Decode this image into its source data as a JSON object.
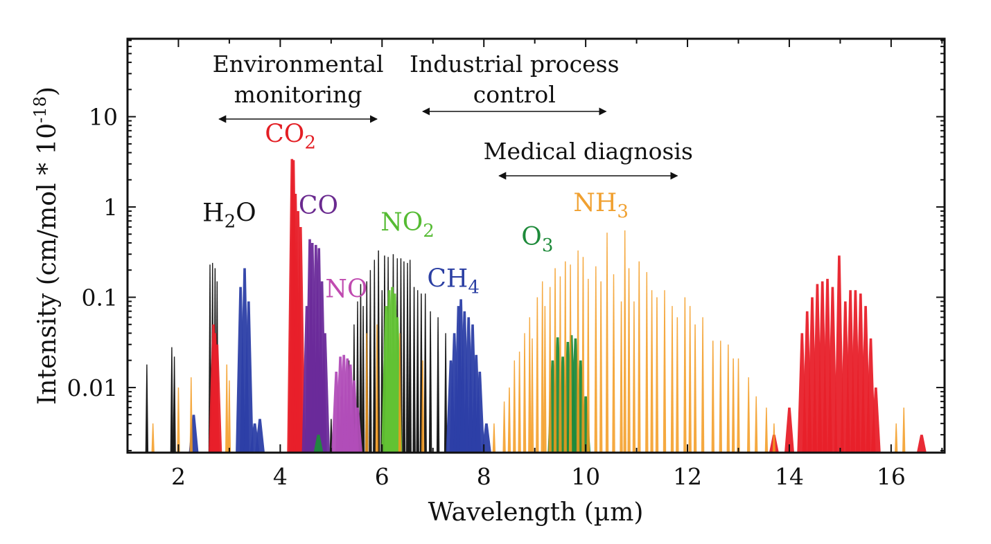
{
  "chart_data": {
    "type": "bar",
    "subtype": "absorption-line-spectrum",
    "title": "",
    "xlabel": "Wavelength (µm)",
    "ylabel": "Intensity (cm/mol * 10",
    "ylabel_superscript": "-18",
    "ylabel_suffix": ")",
    "xlim": [
      1.0,
      17.05
    ],
    "ylim": [
      0.0019,
      73
    ],
    "yscale": "log",
    "grid": false,
    "x_ticks": [
      2,
      4,
      6,
      8,
      10,
      12,
      14,
      16
    ],
    "x_tick_labels": [
      "2",
      "4",
      "6",
      "8",
      "10",
      "12",
      "14",
      "16"
    ],
    "y_ticks": [
      0.01,
      0.1,
      1,
      10
    ],
    "y_tick_labels": [
      "0.01",
      "0.1",
      "1",
      "10"
    ],
    "applications": [
      {
        "label_lines": [
          "Environmental",
          "monitoring"
        ],
        "range": [
          2.8,
          5.9
        ]
      },
      {
        "label_lines": [
          "Industrial process",
          "control"
        ],
        "range": [
          6.8,
          10.4
        ]
      },
      {
        "label_lines": [
          "Medical diagnosis"
        ],
        "range": [
          8.3,
          11.8
        ]
      }
    ],
    "series": [
      {
        "name": "H2O",
        "label": "H",
        "label_sub": "2",
        "label_tail": "O",
        "color": "#111111",
        "label_color": "#111111",
        "label_at": [
          3.0,
          0.7
        ],
        "lines": [
          [
            1.38,
            0.018
          ],
          [
            1.87,
            0.028
          ],
          [
            1.92,
            0.022
          ],
          [
            2.62,
            0.23
          ],
          [
            2.67,
            0.24
          ],
          [
            2.72,
            0.21
          ],
          [
            2.76,
            0.15
          ],
          [
            4.5,
            0.0035
          ],
          [
            5.0,
            0.0045
          ],
          [
            5.2,
            0.008
          ],
          [
            5.35,
            0.02
          ],
          [
            5.45,
            0.05
          ],
          [
            5.52,
            0.09
          ],
          [
            5.58,
            0.14
          ],
          [
            5.63,
            0.08
          ],
          [
            5.7,
            0.15
          ],
          [
            5.77,
            0.2
          ],
          [
            5.85,
            0.26
          ],
          [
            5.93,
            0.33
          ],
          [
            6.0,
            0.12
          ],
          [
            6.05,
            0.29
          ],
          [
            6.12,
            0.28
          ],
          [
            6.22,
            0.3
          ],
          [
            6.3,
            0.27
          ],
          [
            6.37,
            0.27
          ],
          [
            6.43,
            0.25
          ],
          [
            6.5,
            0.24
          ],
          [
            6.55,
            0.26
          ],
          [
            6.63,
            0.13
          ],
          [
            6.7,
            0.12
          ],
          [
            6.77,
            0.11
          ],
          [
            6.85,
            0.11
          ],
          [
            6.95,
            0.07
          ],
          [
            7.1,
            0.06
          ],
          [
            7.25,
            0.04
          ]
        ]
      },
      {
        "name": "CO2",
        "label": "CO",
        "label_sub": "2",
        "label_tail": "",
        "color": "#e8202a",
        "label_color": "#e31e24",
        "label_at": [
          4.2,
          5.2
        ],
        "lines": [
          [
            2.69,
            0.05
          ],
          [
            2.72,
            0.04
          ],
          [
            2.76,
            0.03
          ],
          [
            4.23,
            3.4
          ],
          [
            4.26,
            3.3
          ],
          [
            4.3,
            1.4
          ],
          [
            4.35,
            0.9
          ],
          [
            4.4,
            0.6
          ],
          [
            13.7,
            0.003
          ],
          [
            14.0,
            0.006
          ],
          [
            14.25,
            0.04
          ],
          [
            14.35,
            0.07
          ],
          [
            14.45,
            0.1
          ],
          [
            14.55,
            0.14
          ],
          [
            14.65,
            0.15
          ],
          [
            14.75,
            0.16
          ],
          [
            14.85,
            0.13
          ],
          [
            14.98,
            0.29
          ],
          [
            15.1,
            0.09
          ],
          [
            15.2,
            0.12
          ],
          [
            15.3,
            0.12
          ],
          [
            15.4,
            0.11
          ],
          [
            15.5,
            0.08
          ],
          [
            15.6,
            0.035
          ],
          [
            15.7,
            0.01
          ],
          [
            16.6,
            0.003
          ]
        ]
      },
      {
        "name": "CO",
        "label": "CO",
        "label_sub": "",
        "label_tail": "",
        "color": "#6a2a9a",
        "label_color": "#6a2a8f",
        "label_at": [
          4.75,
          0.84
        ],
        "lines": [
          [
            4.52,
            0.08
          ],
          [
            4.58,
            0.44
          ],
          [
            4.63,
            0.4
          ],
          [
            4.7,
            0.38
          ],
          [
            4.76,
            0.35
          ],
          [
            4.82,
            0.15
          ],
          [
            4.88,
            0.04
          ]
        ]
      },
      {
        "name": "NO",
        "label": "NO",
        "label_sub": "",
        "label_tail": "",
        "color": "#b14db8",
        "label_color": "#c04bb0",
        "label_at": [
          5.3,
          0.1
        ],
        "lines": [
          [
            5.1,
            0.015
          ],
          [
            5.18,
            0.022
          ],
          [
            5.25,
            0.023
          ],
          [
            5.32,
            0.021
          ],
          [
            5.38,
            0.018
          ],
          [
            5.45,
            0.012
          ],
          [
            5.52,
            0.006
          ]
        ]
      },
      {
        "name": "NO2",
        "label": "NO",
        "label_sub": "2",
        "label_tail": "",
        "color": "#62c234",
        "label_color": "#55bb33",
        "label_at": [
          6.5,
          0.55
        ],
        "lines": [
          [
            6.08,
            0.08
          ],
          [
            6.14,
            0.12
          ],
          [
            6.2,
            0.13
          ],
          [
            6.25,
            0.11
          ],
          [
            6.3,
            0.06
          ]
        ]
      },
      {
        "name": "CH4",
        "label": "CH",
        "label_sub": "4",
        "label_tail": "",
        "color": "#2c3fa6",
        "label_color": "#2b3fa3",
        "label_at": [
          7.4,
          0.13
        ],
        "lines": [
          [
            2.3,
            0.005
          ],
          [
            3.22,
            0.13
          ],
          [
            3.3,
            0.21
          ],
          [
            3.38,
            0.09
          ],
          [
            3.5,
            0.004
          ],
          [
            3.6,
            0.0045
          ],
          [
            7.35,
            0.02
          ],
          [
            7.42,
            0.04
          ],
          [
            7.5,
            0.08
          ],
          [
            7.55,
            0.095
          ],
          [
            7.62,
            0.07
          ],
          [
            7.7,
            0.06
          ],
          [
            7.78,
            0.05
          ],
          [
            7.85,
            0.023
          ],
          [
            7.92,
            0.015
          ],
          [
            8.05,
            0.004
          ]
        ]
      },
      {
        "name": "O3",
        "label": "O",
        "label_sub": "3",
        "label_tail": "",
        "color": "#1f8a3c",
        "label_color": "#1e8a3a",
        "label_at": [
          9.05,
          0.38
        ],
        "lines": [
          [
            4.75,
            0.003
          ],
          [
            9.35,
            0.02
          ],
          [
            9.45,
            0.036
          ],
          [
            9.55,
            0.022
          ],
          [
            9.65,
            0.032
          ],
          [
            9.72,
            0.038
          ],
          [
            9.8,
            0.035
          ],
          [
            9.9,
            0.02
          ],
          [
            10.0,
            0.008
          ]
        ]
      },
      {
        "name": "NH3",
        "label": "NH",
        "label_sub": "3",
        "label_tail": "",
        "color": "#f39a1e",
        "label_color": "#f0a030",
        "label_at": [
          10.3,
          0.9
        ],
        "lines": [
          [
            1.5,
            0.004
          ],
          [
            2.0,
            0.01
          ],
          [
            2.25,
            0.013
          ],
          [
            2.95,
            0.018
          ],
          [
            3.0,
            0.012
          ],
          [
            5.7,
            0.04
          ],
          [
            5.9,
            0.05
          ],
          [
            6.35,
            0.04
          ],
          [
            6.8,
            0.02
          ],
          [
            8.2,
            0.004
          ],
          [
            8.4,
            0.007
          ],
          [
            8.5,
            0.01
          ],
          [
            8.6,
            0.02
          ],
          [
            8.7,
            0.025
          ],
          [
            8.8,
            0.04
          ],
          [
            8.9,
            0.06
          ],
          [
            8.95,
            0.035
          ],
          [
            9.05,
            0.1
          ],
          [
            9.15,
            0.15
          ],
          [
            9.2,
            0.08
          ],
          [
            9.3,
            0.13
          ],
          [
            9.4,
            0.21
          ],
          [
            9.5,
            0.17
          ],
          [
            9.6,
            0.25
          ],
          [
            9.7,
            0.23
          ],
          [
            9.85,
            0.33
          ],
          [
            9.95,
            0.28
          ],
          [
            10.05,
            0.16
          ],
          [
            10.2,
            0.22
          ],
          [
            10.3,
            0.15
          ],
          [
            10.42,
            0.52
          ],
          [
            10.55,
            0.18
          ],
          [
            10.7,
            0.09
          ],
          [
            10.77,
            0.55
          ],
          [
            10.85,
            0.21
          ],
          [
            10.95,
            0.09
          ],
          [
            11.05,
            0.25
          ],
          [
            11.2,
            0.19
          ],
          [
            11.3,
            0.12
          ],
          [
            11.4,
            0.1
          ],
          [
            11.55,
            0.12
          ],
          [
            11.7,
            0.08
          ],
          [
            11.8,
            0.06
          ],
          [
            11.95,
            0.1
          ],
          [
            12.05,
            0.08
          ],
          [
            12.15,
            0.05
          ],
          [
            12.3,
            0.06
          ],
          [
            12.5,
            0.033
          ],
          [
            12.65,
            0.033
          ],
          [
            12.8,
            0.03
          ],
          [
            12.9,
            0.021
          ],
          [
            13.0,
            0.021
          ],
          [
            13.2,
            0.013
          ],
          [
            13.35,
            0.008
          ],
          [
            13.55,
            0.006
          ],
          [
            13.7,
            0.004
          ],
          [
            16.1,
            0.004
          ],
          [
            16.25,
            0.006
          ]
        ]
      }
    ]
  }
}
